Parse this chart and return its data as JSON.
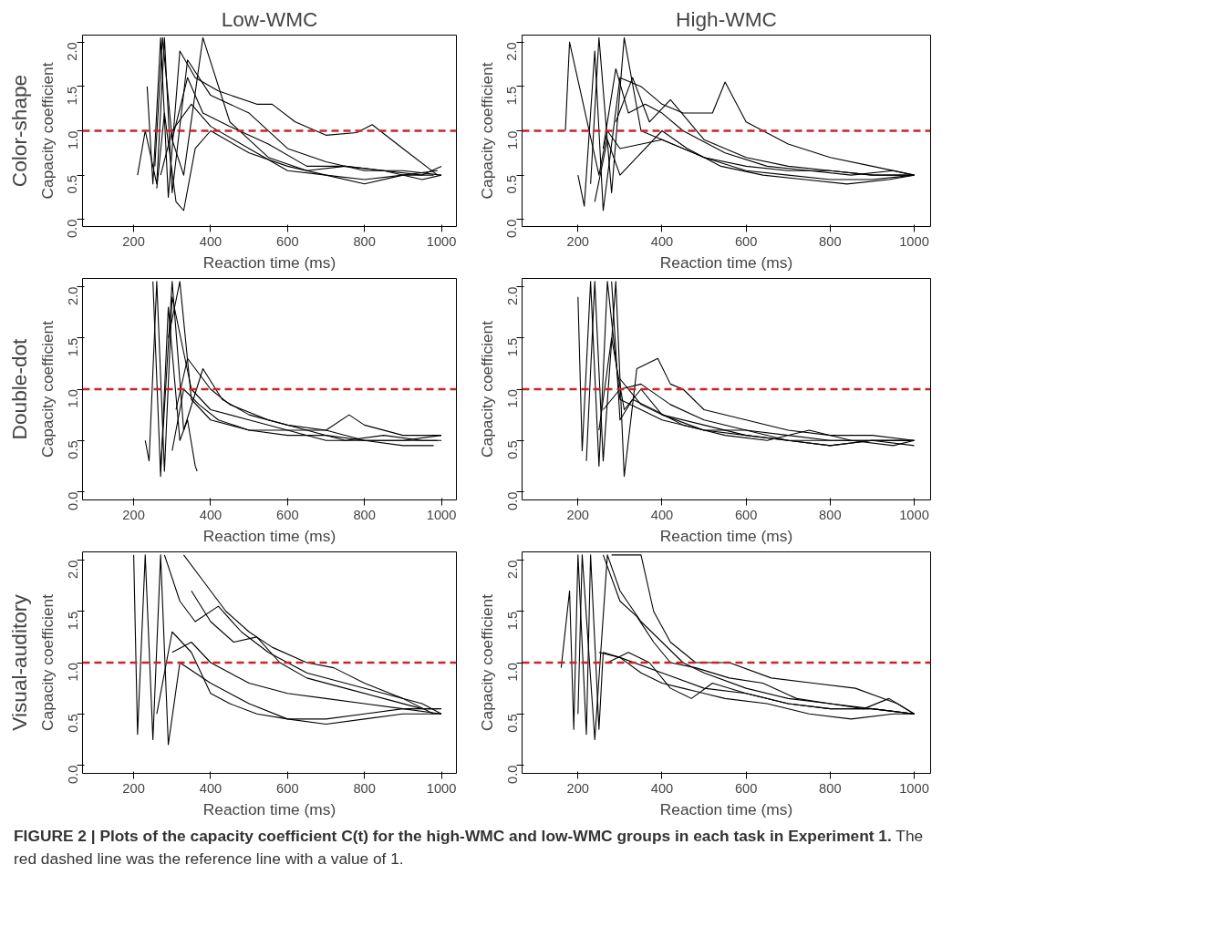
{
  "chart_data": [
    {
      "type": "line",
      "title": "Low-WMC",
      "subtitle": "Color-shape",
      "xlabel": "Reaction time (ms)",
      "ylabel": "Capacity coefficient",
      "xlim": [
        67,
        1039
      ],
      "ylim": [
        -0.08,
        2.08
      ],
      "xticks": [
        200,
        400,
        600,
        800,
        1000
      ],
      "yticks": [
        {
          "value": 0,
          "label": "0.0"
        },
        {
          "value": 0.5,
          "label": "0.5"
        },
        {
          "value": 1,
          "label": "1.0"
        },
        {
          "value": 1.5,
          "label": "1.5"
        },
        {
          "value": 2,
          "label": "2.0"
        }
      ],
      "grid": false,
      "ref_lines": [
        {
          "axis": "y",
          "value": 1,
          "color": "#c8242a",
          "line_style": "dashed"
        }
      ],
      "series": [
        {
          "color": "#000000",
          "x": [
            210,
            230,
            260,
            280,
            300,
            340,
            400,
            500,
            600,
            700,
            800,
            900,
            1000
          ],
          "values": [
            0.5,
            1.0,
            0.4,
            2.05,
            0.3,
            1.8,
            1.4,
            1.2,
            0.8,
            0.65,
            0.55,
            0.55,
            0.5
          ]
        },
        {
          "color": "#000000",
          "x": [
            235,
            250,
            270,
            290,
            320,
            360,
            420,
            520,
            560,
            620,
            700,
            780,
            820,
            900,
            990
          ],
          "values": [
            1.5,
            0.4,
            2.05,
            0.25,
            1.9,
            1.6,
            1.45,
            1.3,
            1.3,
            1.1,
            0.95,
            0.98,
            1.07,
            0.8,
            0.5
          ]
        },
        {
          "color": "#000000",
          "x": [
            260,
            280,
            310,
            330,
            360,
            400,
            500,
            600,
            700,
            800,
            900,
            980
          ],
          "values": [
            0.35,
            1.2,
            0.2,
            0.1,
            0.8,
            1.0,
            0.75,
            0.6,
            0.5,
            0.45,
            0.5,
            0.5
          ]
        },
        {
          "color": "#000000",
          "x": [
            255,
            275,
            300,
            330,
            380,
            450,
            550,
            650,
            750,
            850,
            950,
            1000
          ],
          "values": [
            0.6,
            2.05,
            0.9,
            0.5,
            2.05,
            1.1,
            0.7,
            0.55,
            0.6,
            0.55,
            0.45,
            0.5
          ]
        },
        {
          "color": "#000000",
          "x": [
            270,
            300,
            350,
            400,
            500,
            600,
            700,
            800,
            900,
            990
          ],
          "values": [
            0.5,
            1.0,
            1.3,
            1.05,
            0.8,
            0.55,
            0.5,
            0.4,
            0.5,
            0.55
          ]
        },
        {
          "color": "#000000",
          "x": [
            300,
            340,
            380,
            450,
            550,
            650,
            750,
            850,
            950,
            1000
          ],
          "values": [
            0.9,
            1.6,
            1.2,
            1.05,
            0.85,
            0.6,
            0.6,
            0.55,
            0.5,
            0.6
          ]
        }
      ]
    },
    {
      "type": "line",
      "title": "High-WMC",
      "xlabel": "Reaction time (ms)",
      "ylabel": "Capacity coefficient",
      "xlim": [
        67,
        1039
      ],
      "ylim": [
        -0.08,
        2.08
      ],
      "xticks": [
        200,
        400,
        600,
        800,
        1000
      ],
      "yticks": [
        {
          "value": 0,
          "label": "0.0"
        },
        {
          "value": 0.5,
          "label": "0.5"
        },
        {
          "value": 1,
          "label": "1.0"
        },
        {
          "value": 1.5,
          "label": "1.5"
        },
        {
          "value": 2,
          "label": "2.0"
        }
      ],
      "grid": false,
      "ref_lines": [
        {
          "axis": "y",
          "value": 1,
          "color": "#c8242a",
          "line_style": "dashed"
        }
      ],
      "series": [
        {
          "color": "#000000",
          "x": [
            170,
            180,
            250,
            270,
            300,
            400,
            500,
            600,
            700,
            800,
            900,
            1000
          ],
          "values": [
            1.0,
            2.0,
            0.5,
            1.0,
            0.8,
            0.9,
            0.7,
            0.6,
            0.55,
            0.55,
            0.5,
            0.5
          ]
        },
        {
          "color": "#000000",
          "x": [
            200,
            215,
            240,
            260,
            300,
            350,
            400,
            450,
            520,
            550,
            600,
            700,
            800,
            900,
            1000
          ],
          "values": [
            0.5,
            0.15,
            1.9,
            0.1,
            1.6,
            1.5,
            1.3,
            1.2,
            1.2,
            1.55,
            1.1,
            0.85,
            0.7,
            0.6,
            0.5
          ]
        },
        {
          "color": "#000000",
          "x": [
            230,
            250,
            280,
            310,
            350,
            400,
            500,
            600,
            700,
            800,
            900,
            1000
          ],
          "values": [
            0.4,
            2.05,
            0.3,
            2.05,
            1.0,
            0.9,
            0.7,
            0.55,
            0.5,
            0.45,
            0.45,
            0.5
          ]
        },
        {
          "color": "#000000",
          "x": [
            260,
            290,
            320,
            360,
            400,
            450,
            550,
            650,
            750,
            850,
            950,
            1000
          ],
          "values": [
            0.8,
            1.7,
            1.2,
            1.3,
            1.2,
            1.0,
            0.75,
            0.6,
            0.55,
            0.5,
            0.55,
            0.5
          ]
        },
        {
          "color": "#000000",
          "x": [
            290,
            330,
            370,
            420,
            500,
            600,
            700,
            800,
            900,
            990
          ],
          "values": [
            1.1,
            1.6,
            1.1,
            1.35,
            0.9,
            0.7,
            0.6,
            0.55,
            0.5,
            0.5
          ]
        },
        {
          "color": "#000000",
          "x": [
            240,
            270,
            300,
            340,
            400,
            460,
            540,
            640,
            740,
            840,
            940,
            1000
          ],
          "values": [
            0.2,
            0.9,
            0.5,
            0.7,
            1.0,
            0.8,
            0.6,
            0.5,
            0.45,
            0.4,
            0.45,
            0.5
          ]
        }
      ]
    },
    {
      "type": "line",
      "subtitle": "Double-dot",
      "xlabel": "Reaction time (ms)",
      "ylabel": "Capacity coefficient",
      "xlim": [
        67,
        1039
      ],
      "ylim": [
        -0.08,
        2.08
      ],
      "xticks": [
        200,
        400,
        600,
        800,
        1000
      ],
      "yticks": [
        {
          "value": 0,
          "label": "0.0"
        },
        {
          "value": 0.5,
          "label": "0.5"
        },
        {
          "value": 1,
          "label": "1.0"
        },
        {
          "value": 1.5,
          "label": "1.5"
        },
        {
          "value": 2,
          "label": "2.0"
        }
      ],
      "grid": false,
      "ref_lines": [
        {
          "axis": "y",
          "value": 1,
          "color": "#c8242a",
          "line_style": "dashed"
        }
      ],
      "series": [
        {
          "color": "#000000",
          "x": [
            230,
            240,
            260,
            280,
            300,
            350,
            400,
            500,
            600,
            700,
            800,
            900,
            1000
          ],
          "values": [
            0.5,
            0.3,
            2.05,
            0.2,
            1.9,
            1.0,
            0.8,
            0.7,
            0.6,
            0.6,
            0.5,
            0.5,
            0.5
          ]
        },
        {
          "color": "#000000",
          "x": [
            250,
            270,
            290,
            320,
            340,
            360,
            365
          ],
          "values": [
            2.05,
            0.15,
            1.8,
            0.5,
            0.7,
            0.25,
            0.2
          ]
        },
        {
          "color": "#000000",
          "x": [
            270,
            300,
            330,
            380,
            430,
            500,
            600,
            700,
            760,
            800,
            900,
            1000
          ],
          "values": [
            0.2,
            2.05,
            0.6,
            1.2,
            0.9,
            0.75,
            0.65,
            0.6,
            0.75,
            0.65,
            0.55,
            0.55
          ]
        },
        {
          "color": "#000000",
          "x": [
            290,
            320,
            350,
            400,
            500,
            600,
            700,
            800,
            900,
            980
          ],
          "values": [
            1.5,
            2.05,
            0.9,
            0.7,
            0.6,
            0.6,
            0.5,
            0.5,
            0.45,
            0.45
          ]
        },
        {
          "color": "#000000",
          "x": [
            300,
            330,
            370,
            420,
            500,
            600,
            700,
            800,
            900,
            1000
          ],
          "values": [
            0.4,
            1.0,
            0.85,
            0.7,
            0.6,
            0.55,
            0.55,
            0.5,
            0.5,
            0.55
          ]
        },
        {
          "color": "#000000",
          "x": [
            310,
            340,
            400,
            450,
            550,
            650,
            750,
            850,
            950,
            990
          ],
          "values": [
            0.8,
            1.3,
            1.0,
            0.85,
            0.7,
            0.6,
            0.5,
            0.55,
            0.5,
            0.5
          ]
        }
      ]
    },
    {
      "type": "line",
      "xlabel": "Reaction time (ms)",
      "ylabel": "Capacity coefficient",
      "xlim": [
        67,
        1039
      ],
      "ylim": [
        -0.08,
        2.08
      ],
      "xticks": [
        200,
        400,
        600,
        800,
        1000
      ],
      "yticks": [
        {
          "value": 0,
          "label": "0.0"
        },
        {
          "value": 0.5,
          "label": "0.5"
        },
        {
          "value": 1,
          "label": "1.0"
        },
        {
          "value": 1.5,
          "label": "1.5"
        },
        {
          "value": 2,
          "label": "2.0"
        }
      ],
      "grid": false,
      "ref_lines": [
        {
          "axis": "y",
          "value": 1,
          "color": "#c8242a",
          "line_style": "dashed"
        }
      ],
      "series": [
        {
          "color": "#000000",
          "x": [
            200,
            210,
            230,
            250,
            270,
            300,
            400,
            500,
            600,
            700,
            800,
            900,
            1000
          ],
          "values": [
            1.9,
            0.4,
            2.05,
            0.25,
            2.05,
            0.9,
            0.7,
            0.6,
            0.55,
            0.5,
            0.5,
            0.5,
            0.5
          ]
        },
        {
          "color": "#000000",
          "x": [
            220,
            240,
            260,
            290,
            310,
            340,
            390,
            420,
            450,
            500,
            600,
            700,
            800,
            900,
            1000
          ],
          "values": [
            0.3,
            2.05,
            0.3,
            2.05,
            0.15,
            1.2,
            1.3,
            1.05,
            1.0,
            0.8,
            0.7,
            0.6,
            0.55,
            0.55,
            0.5
          ]
        },
        {
          "color": "#000000",
          "x": [
            250,
            280,
            310,
            350,
            400,
            500,
            600,
            700,
            800,
            900,
            990
          ],
          "values": [
            0.6,
            1.5,
            0.8,
            1.0,
            0.75,
            0.65,
            0.55,
            0.5,
            0.45,
            0.5,
            0.5
          ]
        },
        {
          "color": "#000000",
          "x": [
            280,
            300,
            330,
            380,
            450,
            550,
            650,
            750,
            850,
            950,
            1000
          ],
          "values": [
            2.05,
            0.7,
            0.9,
            0.8,
            0.65,
            0.55,
            0.5,
            0.6,
            0.5,
            0.45,
            0.5
          ]
        },
        {
          "color": "#000000",
          "x": [
            300,
            350,
            400,
            500,
            600,
            700,
            800,
            900,
            1000
          ],
          "values": [
            1.1,
            0.85,
            0.75,
            0.6,
            0.6,
            0.55,
            0.5,
            0.5,
            0.45
          ]
        },
        {
          "color": "#000000",
          "x": [
            260,
            300,
            350,
            420,
            500,
            600,
            700,
            800,
            900,
            1000
          ],
          "values": [
            0.8,
            1.0,
            1.05,
            0.85,
            0.7,
            0.6,
            0.5,
            0.45,
            0.5,
            0.5
          ]
        }
      ]
    },
    {
      "type": "line",
      "subtitle": "Visual-auditory",
      "xlabel": "Reaction time (ms)",
      "ylabel": "Capacity coefficient",
      "xlim": [
        67,
        1039
      ],
      "ylim": [
        -0.08,
        2.08
      ],
      "xticks": [
        200,
        400,
        600,
        800,
        1000
      ],
      "yticks": [
        {
          "value": 0,
          "label": "0.0"
        },
        {
          "value": 0.5,
          "label": "0.5"
        },
        {
          "value": 1,
          "label": "1.0"
        },
        {
          "value": 1.5,
          "label": "1.5"
        },
        {
          "value": 2,
          "label": "2.0"
        }
      ],
      "grid": false,
      "ref_lines": [
        {
          "axis": "y",
          "value": 1,
          "color": "#c8242a",
          "line_style": "dashed"
        }
      ],
      "series": [
        {
          "color": "#000000",
          "x": [
            200,
            210,
            230,
            250,
            270,
            290,
            320,
            400,
            500,
            600,
            700,
            800,
            900,
            990
          ],
          "values": [
            2.05,
            0.3,
            2.05,
            0.25,
            2.05,
            0.2,
            1.0,
            0.8,
            0.6,
            0.45,
            0.45,
            0.5,
            0.55,
            0.55
          ]
        },
        {
          "color": "#000000",
          "x": [
            280,
            320,
            360,
            420,
            480,
            550,
            650,
            750,
            850,
            950,
            1000
          ],
          "values": [
            2.05,
            1.6,
            1.4,
            1.55,
            1.3,
            1.1,
            0.9,
            0.8,
            0.7,
            0.6,
            0.5
          ]
        },
        {
          "color": "#000000",
          "x": [
            330,
            380,
            440,
            500,
            560,
            650,
            720,
            800,
            900,
            980
          ],
          "values": [
            2.05,
            1.8,
            1.5,
            1.3,
            1.15,
            1.0,
            0.95,
            0.8,
            0.65,
            0.5
          ]
        },
        {
          "color": "#000000",
          "x": [
            260,
            300,
            350,
            400,
            450,
            520,
            600,
            700,
            800,
            900,
            1000
          ],
          "values": [
            0.5,
            1.3,
            1.1,
            0.7,
            0.6,
            0.5,
            0.45,
            0.4,
            0.45,
            0.5,
            0.5
          ]
        },
        {
          "color": "#000000",
          "x": [
            300,
            350,
            400,
            450,
            500,
            600,
            700,
            800,
            900,
            1000
          ],
          "values": [
            1.1,
            1.2,
            1.0,
            0.9,
            0.8,
            0.7,
            0.65,
            0.6,
            0.55,
            0.5
          ]
        },
        {
          "color": "#000000",
          "x": [
            350,
            400,
            460,
            520,
            580,
            650,
            750,
            850,
            950,
            1000
          ],
          "values": [
            1.7,
            1.4,
            1.2,
            1.25,
            1.0,
            0.85,
            0.75,
            0.65,
            0.55,
            0.55
          ]
        }
      ]
    },
    {
      "type": "line",
      "xlabel": "Reaction time (ms)",
      "ylabel": "Capacity coefficient",
      "xlim": [
        67,
        1039
      ],
      "ylim": [
        -0.08,
        2.08
      ],
      "xticks": [
        200,
        400,
        600,
        800,
        1000
      ],
      "yticks": [
        {
          "value": 0,
          "label": "0.0"
        },
        {
          "value": 0.5,
          "label": "0.5"
        },
        {
          "value": 1,
          "label": "1.0"
        },
        {
          "value": 1.5,
          "label": "1.5"
        },
        {
          "value": 2,
          "label": "2.0"
        }
      ],
      "grid": false,
      "ref_lines": [
        {
          "axis": "y",
          "value": 1,
          "color": "#c8242a",
          "line_style": "dashed"
        }
      ],
      "annotations": [
        "FIGURE 2 | Plots of the capacity coefficient C(t) for the high-WMC and low-WMC groups in each task in Experiment 1.",
        "The red dashed line was the reference line with a value of 1."
      ],
      "series": [
        {
          "color": "#000000",
          "x": [
            160,
            180,
            190,
            200,
            220,
            230,
            250,
            260,
            300,
            400,
            500,
            600,
            700,
            800,
            900,
            1000
          ],
          "values": [
            0.95,
            1.7,
            0.35,
            2.05,
            0.3,
            2.05,
            0.35,
            1.1,
            1.05,
            0.9,
            0.75,
            0.7,
            0.6,
            0.55,
            0.55,
            0.5
          ]
        },
        {
          "color": "#000000",
          "x": [
            200,
            210,
            240,
            270,
            300,
            350,
            400,
            450,
            500,
            600,
            700,
            800,
            900,
            1000
          ],
          "values": [
            0.5,
            2.05,
            0.25,
            2.05,
            1.7,
            1.4,
            1.2,
            1.0,
            0.9,
            0.75,
            0.65,
            0.6,
            0.55,
            0.5
          ]
        },
        {
          "color": "#000000",
          "x": [
            260,
            300,
            340,
            380,
            420,
            480,
            560,
            640,
            720,
            800,
            880,
            940,
            1000
          ],
          "values": [
            2.05,
            1.6,
            1.45,
            1.2,
            1.0,
            0.95,
            0.85,
            0.8,
            0.65,
            0.6,
            0.55,
            0.65,
            0.5
          ]
        },
        {
          "color": "#000000",
          "x": [
            280,
            350,
            380,
            420,
            480,
            560,
            660,
            760,
            860,
            960,
            1000
          ],
          "values": [
            2.05,
            2.05,
            1.5,
            1.2,
            1.0,
            1.0,
            0.85,
            0.8,
            0.75,
            0.6,
            0.5
          ]
        },
        {
          "color": "#000000",
          "x": [
            250,
            300,
            350,
            400,
            450,
            550,
            650,
            750,
            850,
            950,
            1000
          ],
          "values": [
            1.1,
            1.05,
            0.9,
            0.8,
            0.75,
            0.65,
            0.6,
            0.5,
            0.45,
            0.5,
            0.5
          ]
        },
        {
          "color": "#000000",
          "x": [
            270,
            320,
            370,
            420,
            470,
            520,
            600,
            700,
            800,
            900,
            1000
          ],
          "values": [
            1.0,
            1.1,
            1.0,
            0.75,
            0.65,
            0.8,
            0.7,
            0.6,
            0.55,
            0.55,
            0.5
          ]
        }
      ]
    }
  ]
}
